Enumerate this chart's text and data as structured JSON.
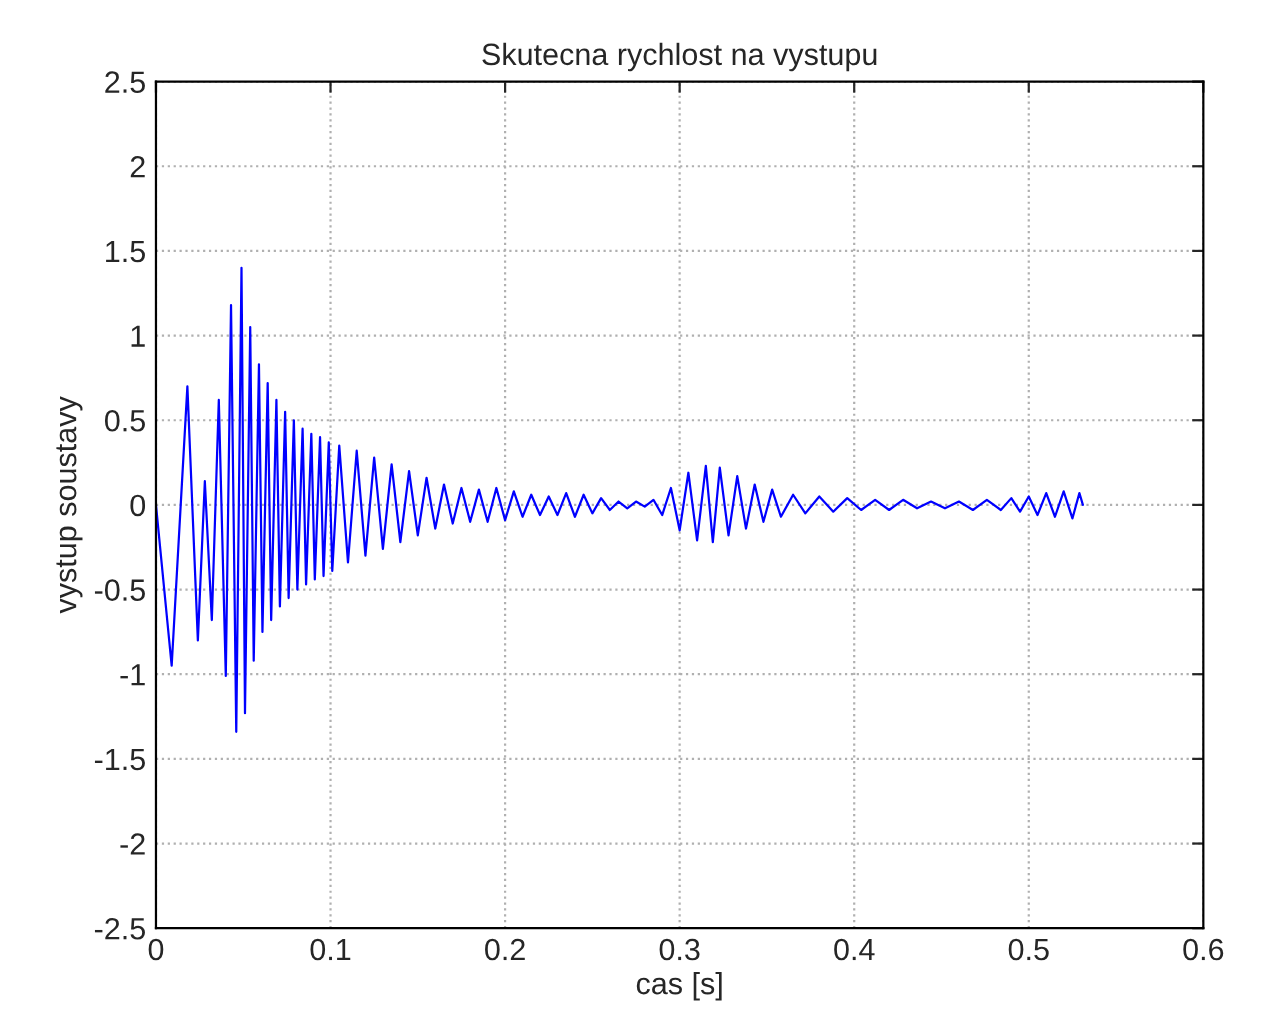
{
  "chart_data": {
    "type": "line",
    "title": "Skutecna rychlost na vystupu",
    "xlabel": "cas [s]",
    "ylabel": "vystup soustavy",
    "xlim": [
      0,
      0.6
    ],
    "ylim": [
      -2.5,
      2.5
    ],
    "xticks": [
      0,
      0.1,
      0.2,
      0.3,
      0.4,
      0.5,
      0.6
    ],
    "yticks": [
      -2.5,
      -2,
      -1.5,
      -1,
      -0.5,
      0,
      0.5,
      1,
      1.5,
      2,
      2.5
    ],
    "grid": true,
    "legend": false,
    "marker": "none",
    "line_style": "solid",
    "series": [
      {
        "color": "#0000ff",
        "x": [
          0,
          0.009,
          0.018,
          0.024,
          0.028,
          0.032,
          0.036,
          0.04,
          0.043,
          0.046,
          0.049,
          0.051,
          0.054,
          0.056,
          0.059,
          0.061,
          0.064,
          0.066,
          0.069,
          0.071,
          0.074,
          0.076,
          0.079,
          0.081,
          0.084,
          0.086,
          0.089,
          0.091,
          0.094,
          0.096,
          0.099,
          0.101,
          0.105,
          0.11,
          0.115,
          0.12,
          0.125,
          0.13,
          0.135,
          0.14,
          0.145,
          0.15,
          0.155,
          0.16,
          0.165,
          0.17,
          0.175,
          0.18,
          0.185,
          0.19,
          0.195,
          0.2,
          0.205,
          0.21,
          0.215,
          0.22,
          0.225,
          0.23,
          0.235,
          0.24,
          0.245,
          0.25,
          0.255,
          0.26,
          0.265,
          0.27,
          0.275,
          0.28,
          0.285,
          0.29,
          0.295,
          0.3,
          0.305,
          0.31,
          0.315,
          0.319,
          0.323,
          0.328,
          0.333,
          0.338,
          0.343,
          0.348,
          0.353,
          0.358,
          0.365,
          0.372,
          0.38,
          0.388,
          0.396,
          0.404,
          0.412,
          0.42,
          0.428,
          0.436,
          0.444,
          0.452,
          0.46,
          0.468,
          0.476,
          0.484,
          0.49,
          0.495,
          0.5,
          0.505,
          0.51,
          0.515,
          0.52,
          0.525,
          0.529,
          0.531
        ],
        "values": [
          0,
          -0.95,
          0.7,
          -0.8,
          0.14,
          -0.68,
          0.62,
          -1.01,
          1.18,
          -1.34,
          1.4,
          -1.23,
          1.05,
          -0.92,
          0.83,
          -0.75,
          0.72,
          -0.68,
          0.62,
          -0.6,
          0.55,
          -0.55,
          0.5,
          -0.5,
          0.45,
          -0.47,
          0.42,
          -0.44,
          0.4,
          -0.42,
          0.37,
          -0.39,
          0.35,
          -0.34,
          0.32,
          -0.3,
          0.28,
          -0.26,
          0.24,
          -0.22,
          0.2,
          -0.18,
          0.16,
          -0.14,
          0.12,
          -0.11,
          0.1,
          -0.1,
          0.09,
          -0.1,
          0.1,
          -0.09,
          0.08,
          -0.07,
          0.06,
          -0.06,
          0.05,
          -0.06,
          0.07,
          -0.07,
          0.06,
          -0.05,
          0.04,
          -0.03,
          0.02,
          -0.02,
          0.02,
          -0.01,
          0.03,
          -0.06,
          0.1,
          -0.15,
          0.19,
          -0.21,
          0.23,
          -0.22,
          0.22,
          -0.18,
          0.17,
          -0.14,
          0.12,
          -0.1,
          0.09,
          -0.07,
          0.06,
          -0.05,
          0.05,
          -0.04,
          0.04,
          -0.03,
          0.03,
          -0.03,
          0.03,
          -0.02,
          0.02,
          -0.02,
          0.02,
          -0.03,
          0.03,
          -0.03,
          0.04,
          -0.04,
          0.05,
          -0.06,
          0.07,
          -0.07,
          0.08,
          -0.08,
          0.07,
          0
        ]
      }
    ]
  }
}
